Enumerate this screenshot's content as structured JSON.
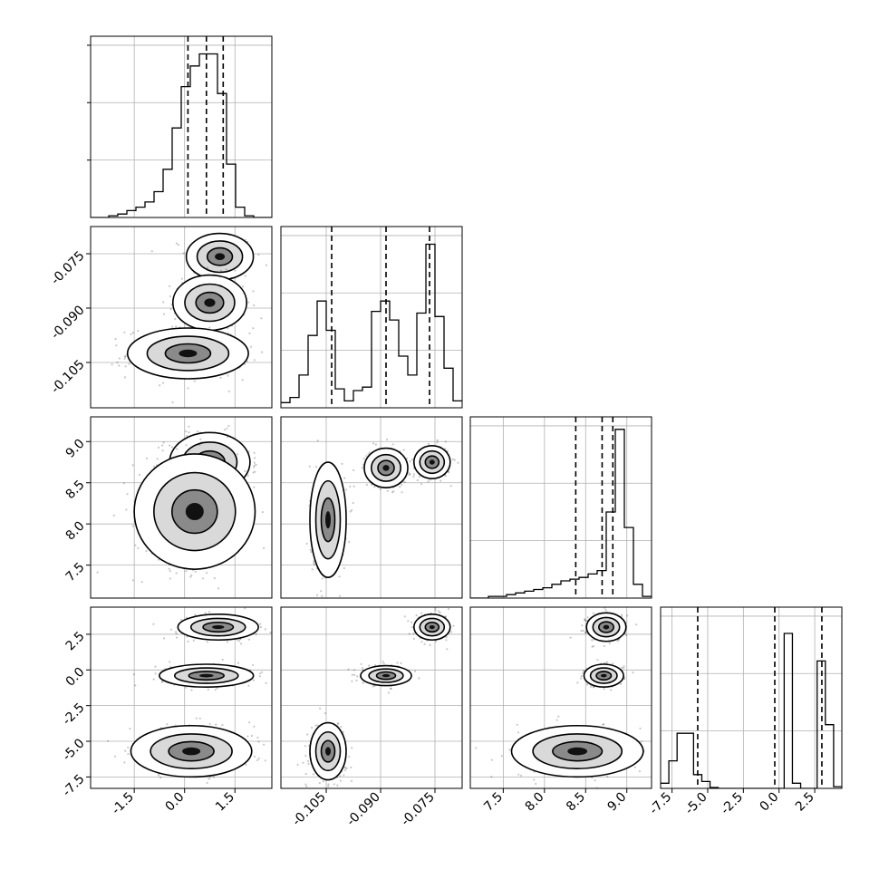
{
  "chart_data": {
    "type": "corner",
    "parameters": [
      {
        "range": [
          -2.8,
          2.6
        ],
        "ticks": [
          "-1.5",
          "0.0",
          "1.5"
        ],
        "tick_values": [
          -1.5,
          0.0,
          1.5
        ]
      },
      {
        "range": [
          -0.1175,
          -0.0675
        ],
        "ticks": [
          "-0.105",
          "-0.090",
          "-0.075"
        ],
        "tick_values": [
          -0.105,
          -0.09,
          -0.075
        ]
      },
      {
        "range": [
          7.1,
          9.3
        ],
        "ticks": [
          "7.5",
          "8.0",
          "8.5",
          "9.0"
        ],
        "tick_values": [
          7.5,
          8.0,
          8.5,
          9.0
        ]
      },
      {
        "range": [
          -8.3,
          4.4
        ],
        "ticks": [
          "-7.5",
          "-5.0",
          "-2.5",
          "0.0",
          "2.5"
        ],
        "tick_values": [
          -7.5,
          -5.0,
          -2.5,
          0.0,
          2.5
        ]
      }
    ],
    "histograms": [
      {
        "counts": [
          0,
          0,
          0.01,
          0.02,
          0.04,
          0.06,
          0.09,
          0.15,
          0.28,
          0.52,
          0.76,
          0.88,
          0.95,
          0.95,
          0.72,
          0.31,
          0.06,
          0.01,
          0,
          0
        ],
        "quantiles": [
          0.1,
          0.65,
          1.15
        ]
      },
      {
        "counts": [
          0.03,
          0.06,
          0.19,
          0.42,
          0.62,
          0.45,
          0.11,
          0.04,
          0.1,
          0.12,
          0.56,
          0.62,
          0.51,
          0.3,
          0.19,
          0.55,
          0.95,
          0.53,
          0.23,
          0.04
        ],
        "quantiles": [
          -0.1035,
          -0.0885,
          -0.0765
        ]
      },
      {
        "counts": [
          0,
          0,
          0.01,
          0.01,
          0.02,
          0.03,
          0.04,
          0.05,
          0.06,
          0.08,
          0.1,
          0.11,
          0.12,
          0.14,
          0.16,
          0.5,
          0.98,
          0.41,
          0.08,
          0.01
        ],
        "quantiles": [
          8.38,
          8.7,
          8.83
        ]
      },
      {
        "counts": [
          0.03,
          0.16,
          0.32,
          0.32,
          0.08,
          0.04,
          0.005,
          0,
          0,
          0,
          0,
          0,
          0,
          0,
          0,
          0.9,
          0.03,
          0,
          0,
          0.74,
          0.37,
          0.01
        ],
        "quantiles": [
          -5.7,
          -0.3,
          3.0
        ]
      }
    ],
    "panels": [
      {
        "i": 1,
        "j": 0,
        "clusters": [
          {
            "mx": 1.05,
            "my": -0.0758,
            "sx": 0.5,
            "sy": 0.0032,
            "w": 0.3
          },
          {
            "mx": 0.75,
            "my": -0.0885,
            "sx": 0.55,
            "sy": 0.0038,
            "w": 0.3
          },
          {
            "mx": 0.1,
            "my": -0.1025,
            "sx": 0.9,
            "sy": 0.0035,
            "w": 0.4
          }
        ]
      },
      {
        "i": 2,
        "j": 0,
        "clusters": [
          {
            "mx": 0.75,
            "my": 8.75,
            "sx": 0.6,
            "sy": 0.18,
            "w": 0.55
          },
          {
            "mx": 0.3,
            "my": 8.15,
            "sx": 0.9,
            "sy": 0.35,
            "w": 0.45
          }
        ]
      },
      {
        "i": 2,
        "j": 1,
        "clusters": [
          {
            "mx": -0.0758,
            "my": 8.75,
            "sx": 0.0025,
            "sy": 0.1,
            "w": 0.3
          },
          {
            "mx": -0.0885,
            "my": 8.68,
            "sx": 0.003,
            "sy": 0.12,
            "w": 0.3
          },
          {
            "mx": -0.1045,
            "my": 8.05,
            "sx": 0.0025,
            "sy": 0.35,
            "w": 0.4
          }
        ]
      },
      {
        "i": 3,
        "j": 0,
        "clusters": [
          {
            "mx": 1.0,
            "my": 3.0,
            "sx": 0.6,
            "sy": 0.45,
            "w": 0.3
          },
          {
            "mx": 0.65,
            "my": -0.4,
            "sx": 0.7,
            "sy": 0.4,
            "w": 0.3
          },
          {
            "mx": 0.2,
            "my": -5.7,
            "sx": 0.9,
            "sy": 0.9,
            "w": 0.4
          }
        ]
      },
      {
        "i": 3,
        "j": 1,
        "clusters": [
          {
            "mx": -0.0758,
            "my": 3.0,
            "sx": 0.0025,
            "sy": 0.45,
            "w": 0.3
          },
          {
            "mx": -0.0885,
            "my": -0.4,
            "sx": 0.0035,
            "sy": 0.35,
            "w": 0.3
          },
          {
            "mx": -0.1045,
            "my": -5.7,
            "sx": 0.0025,
            "sy": 1.0,
            "w": 0.4
          }
        ]
      },
      {
        "i": 3,
        "j": 2,
        "clusters": [
          {
            "mx": 8.75,
            "my": 3.0,
            "sx": 0.12,
            "sy": 0.5,
            "w": 0.3
          },
          {
            "mx": 8.72,
            "my": -0.4,
            "sx": 0.12,
            "sy": 0.4,
            "w": 0.3
          },
          {
            "mx": 8.4,
            "my": -5.7,
            "sx": 0.4,
            "sy": 0.9,
            "w": 0.4
          }
        ]
      }
    ],
    "grid": true,
    "dashed_quantile_lines": true
  }
}
